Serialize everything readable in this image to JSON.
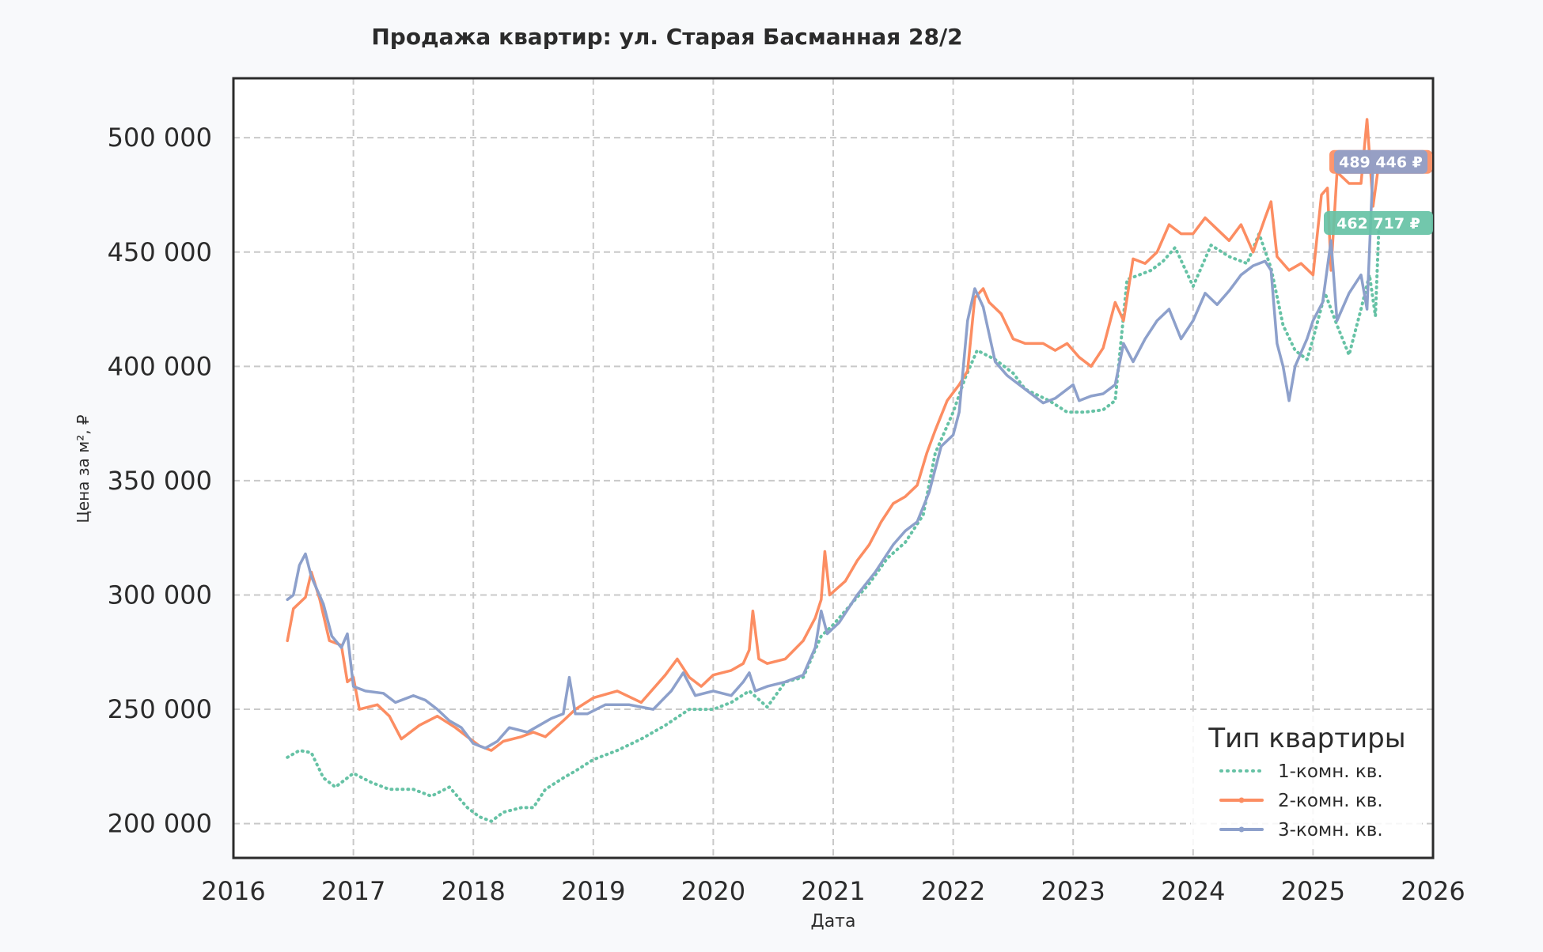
{
  "chart_data": {
    "type": "line",
    "title": "Продажа квартир: ул. Старая Басманная 28/2",
    "xlabel": "Дата",
    "ylabel": "Цена за м², ₽",
    "x_range": [
      2016,
      2026
    ],
    "ylim": [
      185000,
      526000
    ],
    "x_ticks": [
      "2016",
      "2017",
      "2018",
      "2019",
      "2020",
      "2021",
      "2022",
      "2023",
      "2024",
      "2025",
      "2026"
    ],
    "y_ticks": [
      {
        "value": 200000,
        "label": "200 000"
      },
      {
        "value": 250000,
        "label": "250 000"
      },
      {
        "value": 300000,
        "label": "300 000"
      },
      {
        "value": 350000,
        "label": "350 000"
      },
      {
        "value": 400000,
        "label": "400 000"
      },
      {
        "value": 450000,
        "label": "450 000"
      },
      {
        "value": 500000,
        "label": "500 000"
      }
    ],
    "grid": true,
    "legend": {
      "title": "Тип квартиры",
      "placement": "bottom-right"
    },
    "series": [
      {
        "name": "1-комн. кв.",
        "color": "#66c2a5",
        "style": "dotted",
        "end_label": "462 717 ₽",
        "points": [
          [
            2016.45,
            229000
          ],
          [
            2016.55,
            232000
          ],
          [
            2016.65,
            231000
          ],
          [
            2016.75,
            220000
          ],
          [
            2016.85,
            216000
          ],
          [
            2017.0,
            222000
          ],
          [
            2017.15,
            218000
          ],
          [
            2017.3,
            215000
          ],
          [
            2017.5,
            215000
          ],
          [
            2017.65,
            212000
          ],
          [
            2017.8,
            216000
          ],
          [
            2017.95,
            207000
          ],
          [
            2018.05,
            203000
          ],
          [
            2018.15,
            201000
          ],
          [
            2018.25,
            205000
          ],
          [
            2018.4,
            207000
          ],
          [
            2018.5,
            207000
          ],
          [
            2018.6,
            215000
          ],
          [
            2018.75,
            220000
          ],
          [
            2018.85,
            223000
          ],
          [
            2019.0,
            228000
          ],
          [
            2019.2,
            232000
          ],
          [
            2019.4,
            237000
          ],
          [
            2019.6,
            243000
          ],
          [
            2019.8,
            250000
          ],
          [
            2020.0,
            250000
          ],
          [
            2020.15,
            253000
          ],
          [
            2020.3,
            258000
          ],
          [
            2020.45,
            251000
          ],
          [
            2020.6,
            262000
          ],
          [
            2020.75,
            264000
          ],
          [
            2020.9,
            282000
          ],
          [
            2021.0,
            287000
          ],
          [
            2021.15,
            296000
          ],
          [
            2021.3,
            305000
          ],
          [
            2021.45,
            316000
          ],
          [
            2021.6,
            323000
          ],
          [
            2021.75,
            335000
          ],
          [
            2021.85,
            362000
          ],
          [
            2022.0,
            380000
          ],
          [
            2022.1,
            395000
          ],
          [
            2022.2,
            407000
          ],
          [
            2022.35,
            403000
          ],
          [
            2022.5,
            397000
          ],
          [
            2022.6,
            390000
          ],
          [
            2022.8,
            385000
          ],
          [
            2022.95,
            380000
          ],
          [
            2023.1,
            380000
          ],
          [
            2023.25,
            381000
          ],
          [
            2023.35,
            385000
          ],
          [
            2023.45,
            438000
          ],
          [
            2023.55,
            440000
          ],
          [
            2023.65,
            442000
          ],
          [
            2023.75,
            446000
          ],
          [
            2023.85,
            452000
          ],
          [
            2024.0,
            435000
          ],
          [
            2024.15,
            453000
          ],
          [
            2024.3,
            448000
          ],
          [
            2024.45,
            445000
          ],
          [
            2024.55,
            458000
          ],
          [
            2024.65,
            443000
          ],
          [
            2024.75,
            418000
          ],
          [
            2024.85,
            407000
          ],
          [
            2024.95,
            403000
          ],
          [
            2025.0,
            412000
          ],
          [
            2025.1,
            432000
          ],
          [
            2025.2,
            418000
          ],
          [
            2025.3,
            405000
          ],
          [
            2025.4,
            425000
          ],
          [
            2025.47,
            440000
          ],
          [
            2025.52,
            422000
          ],
          [
            2025.55,
            462717
          ]
        ]
      },
      {
        "name": "2-комн. кв.",
        "color": "#fc8d62",
        "style": "solid",
        "end_label": "489 446 ₽",
        "points": [
          [
            2016.45,
            280000
          ],
          [
            2016.5,
            294000
          ],
          [
            2016.6,
            299000
          ],
          [
            2016.65,
            310000
          ],
          [
            2016.72,
            298000
          ],
          [
            2016.8,
            280000
          ],
          [
            2016.9,
            278000
          ],
          [
            2016.95,
            262000
          ],
          [
            2017.0,
            264000
          ],
          [
            2017.05,
            250000
          ],
          [
            2017.2,
            252000
          ],
          [
            2017.3,
            247000
          ],
          [
            2017.4,
            237000
          ],
          [
            2017.55,
            243000
          ],
          [
            2017.7,
            247000
          ],
          [
            2017.85,
            242000
          ],
          [
            2017.95,
            238000
          ],
          [
            2018.05,
            234000
          ],
          [
            2018.15,
            232000
          ],
          [
            2018.25,
            236000
          ],
          [
            2018.4,
            238000
          ],
          [
            2018.5,
            240000
          ],
          [
            2018.6,
            238000
          ],
          [
            2018.75,
            245000
          ],
          [
            2018.85,
            250000
          ],
          [
            2019.0,
            255000
          ],
          [
            2019.2,
            258000
          ],
          [
            2019.4,
            253000
          ],
          [
            2019.6,
            265000
          ],
          [
            2019.7,
            272000
          ],
          [
            2019.8,
            264000
          ],
          [
            2019.9,
            260000
          ],
          [
            2020.0,
            265000
          ],
          [
            2020.15,
            267000
          ],
          [
            2020.25,
            270000
          ],
          [
            2020.3,
            276000
          ],
          [
            2020.33,
            293000
          ],
          [
            2020.38,
            272000
          ],
          [
            2020.45,
            270000
          ],
          [
            2020.6,
            272000
          ],
          [
            2020.75,
            280000
          ],
          [
            2020.85,
            290000
          ],
          [
            2020.9,
            298000
          ],
          [
            2020.93,
            319000
          ],
          [
            2020.97,
            300000
          ],
          [
            2021.1,
            306000
          ],
          [
            2021.2,
            315000
          ],
          [
            2021.3,
            322000
          ],
          [
            2021.4,
            332000
          ],
          [
            2021.5,
            340000
          ],
          [
            2021.6,
            343000
          ],
          [
            2021.7,
            348000
          ],
          [
            2021.78,
            362000
          ],
          [
            2021.85,
            372000
          ],
          [
            2021.95,
            385000
          ],
          [
            2022.05,
            392000
          ],
          [
            2022.12,
            398000
          ],
          [
            2022.18,
            430000
          ],
          [
            2022.25,
            434000
          ],
          [
            2022.3,
            428000
          ],
          [
            2022.4,
            423000
          ],
          [
            2022.5,
            412000
          ],
          [
            2022.6,
            410000
          ],
          [
            2022.75,
            410000
          ],
          [
            2022.85,
            407000
          ],
          [
            2022.95,
            410000
          ],
          [
            2023.05,
            404000
          ],
          [
            2023.15,
            400000
          ],
          [
            2023.25,
            408000
          ],
          [
            2023.35,
            428000
          ],
          [
            2023.42,
            420000
          ],
          [
            2023.5,
            447000
          ],
          [
            2023.6,
            445000
          ],
          [
            2023.7,
            450000
          ],
          [
            2023.8,
            462000
          ],
          [
            2023.9,
            458000
          ],
          [
            2024.0,
            458000
          ],
          [
            2024.1,
            465000
          ],
          [
            2024.2,
            460000
          ],
          [
            2024.3,
            455000
          ],
          [
            2024.4,
            462000
          ],
          [
            2024.5,
            450000
          ],
          [
            2024.6,
            465000
          ],
          [
            2024.65,
            472000
          ],
          [
            2024.7,
            448000
          ],
          [
            2024.8,
            442000
          ],
          [
            2024.9,
            445000
          ],
          [
            2025.0,
            440000
          ],
          [
            2025.07,
            475000
          ],
          [
            2025.12,
            478000
          ],
          [
            2025.15,
            442000
          ],
          [
            2025.2,
            485000
          ],
          [
            2025.3,
            480000
          ],
          [
            2025.4,
            480000
          ],
          [
            2025.45,
            508000
          ],
          [
            2025.5,
            470000
          ],
          [
            2025.55,
            489446
          ]
        ]
      },
      {
        "name": "3-комн. кв.",
        "color": "#8da0cb",
        "style": "solid",
        "end_label": "489 446 ₽",
        "points": [
          [
            2016.45,
            298000
          ],
          [
            2016.5,
            300000
          ],
          [
            2016.55,
            313000
          ],
          [
            2016.6,
            318000
          ],
          [
            2016.65,
            308000
          ],
          [
            2016.75,
            296000
          ],
          [
            2016.82,
            282000
          ],
          [
            2016.9,
            277000
          ],
          [
            2016.95,
            283000
          ],
          [
            2017.0,
            260000
          ],
          [
            2017.1,
            258000
          ],
          [
            2017.25,
            257000
          ],
          [
            2017.35,
            253000
          ],
          [
            2017.5,
            256000
          ],
          [
            2017.6,
            254000
          ],
          [
            2017.7,
            250000
          ],
          [
            2017.8,
            245000
          ],
          [
            2017.9,
            242000
          ],
          [
            2018.0,
            235000
          ],
          [
            2018.1,
            233000
          ],
          [
            2018.2,
            236000
          ],
          [
            2018.3,
            242000
          ],
          [
            2018.45,
            240000
          ],
          [
            2018.55,
            243000
          ],
          [
            2018.65,
            246000
          ],
          [
            2018.75,
            248000
          ],
          [
            2018.8,
            264000
          ],
          [
            2018.85,
            248000
          ],
          [
            2018.95,
            248000
          ],
          [
            2019.1,
            252000
          ],
          [
            2019.3,
            252000
          ],
          [
            2019.5,
            250000
          ],
          [
            2019.65,
            258000
          ],
          [
            2019.75,
            266000
          ],
          [
            2019.85,
            256000
          ],
          [
            2020.0,
            258000
          ],
          [
            2020.15,
            256000
          ],
          [
            2020.25,
            262000
          ],
          [
            2020.3,
            266000
          ],
          [
            2020.35,
            258000
          ],
          [
            2020.45,
            260000
          ],
          [
            2020.6,
            262000
          ],
          [
            2020.75,
            265000
          ],
          [
            2020.85,
            277000
          ],
          [
            2020.9,
            293000
          ],
          [
            2020.95,
            283000
          ],
          [
            2021.05,
            288000
          ],
          [
            2021.2,
            300000
          ],
          [
            2021.35,
            310000
          ],
          [
            2021.5,
            322000
          ],
          [
            2021.6,
            328000
          ],
          [
            2021.7,
            332000
          ],
          [
            2021.8,
            345000
          ],
          [
            2021.9,
            365000
          ],
          [
            2022.0,
            370000
          ],
          [
            2022.05,
            380000
          ],
          [
            2022.12,
            420000
          ],
          [
            2022.18,
            434000
          ],
          [
            2022.25,
            426000
          ],
          [
            2022.35,
            402000
          ],
          [
            2022.45,
            396000
          ],
          [
            2022.55,
            392000
          ],
          [
            2022.65,
            388000
          ],
          [
            2022.75,
            384000
          ],
          [
            2022.85,
            386000
          ],
          [
            2023.0,
            392000
          ],
          [
            2023.05,
            385000
          ],
          [
            2023.15,
            387000
          ],
          [
            2023.25,
            388000
          ],
          [
            2023.35,
            392000
          ],
          [
            2023.42,
            410000
          ],
          [
            2023.5,
            402000
          ],
          [
            2023.6,
            412000
          ],
          [
            2023.7,
            420000
          ],
          [
            2023.8,
            425000
          ],
          [
            2023.9,
            412000
          ],
          [
            2024.0,
            420000
          ],
          [
            2024.1,
            432000
          ],
          [
            2024.2,
            427000
          ],
          [
            2024.3,
            433000
          ],
          [
            2024.4,
            440000
          ],
          [
            2024.5,
            444000
          ],
          [
            2024.6,
            446000
          ],
          [
            2024.65,
            442000
          ],
          [
            2024.7,
            410000
          ],
          [
            2024.75,
            400000
          ],
          [
            2024.8,
            385000
          ],
          [
            2024.85,
            400000
          ],
          [
            2024.95,
            412000
          ],
          [
            2025.0,
            420000
          ],
          [
            2025.08,
            428000
          ],
          [
            2025.15,
            455000
          ],
          [
            2025.2,
            420000
          ],
          [
            2025.3,
            432000
          ],
          [
            2025.4,
            440000
          ],
          [
            2025.45,
            425000
          ],
          [
            2025.5,
            488000
          ],
          [
            2025.55,
            489446
          ]
        ]
      }
    ]
  }
}
